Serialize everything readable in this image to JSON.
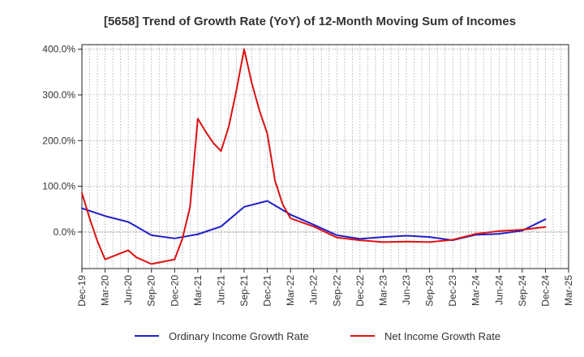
{
  "chart_data": {
    "type": "line",
    "title": "[5658]  Trend of Growth Rate (YoY) of 12-Month Moving Sum of Incomes",
    "xlabel": "",
    "ylabel": "",
    "x_tick_labels": [
      "Dec-19",
      "Mar-20",
      "Jun-20",
      "Sep-20",
      "Dec-20",
      "Mar-21",
      "Jun-21",
      "Sep-21",
      "Dec-21",
      "Mar-22",
      "Jun-22",
      "Sep-22",
      "Dec-22",
      "Mar-23",
      "Jun-23",
      "Sep-23",
      "Dec-23",
      "Mar-24",
      "Jun-24",
      "Sep-24",
      "Dec-24",
      "Mar-25"
    ],
    "y_ticks": [
      0,
      100,
      200,
      300,
      400
    ],
    "y_tick_labels": [
      "0.0%",
      "100.0%",
      "200.0%",
      "300.0%",
      "400.0%"
    ],
    "ylim": [
      -80,
      410
    ],
    "grid": true,
    "legend_position": "bottom",
    "series": [
      {
        "name": "Ordinary Income Growth Rate",
        "color": "#1f1fcc",
        "points": [
          [
            "Dec-19",
            52
          ],
          [
            "Mar-20",
            35
          ],
          [
            "Jun-20",
            22
          ],
          [
            "Sep-20",
            -7
          ],
          [
            "Dec-20",
            -14
          ],
          [
            "Mar-21",
            -5
          ],
          [
            "Jun-21",
            12
          ],
          [
            "Sep-21",
            55
          ],
          [
            "Dec-21",
            68
          ],
          [
            "Mar-22",
            38
          ],
          [
            "Jun-22",
            16
          ],
          [
            "Sep-22",
            -7
          ],
          [
            "Dec-22",
            -15
          ],
          [
            "Mar-23",
            -11
          ],
          [
            "Jun-23",
            -8
          ],
          [
            "Sep-23",
            -11
          ],
          [
            "Dec-23",
            -18
          ],
          [
            "Mar-24",
            -6
          ],
          [
            "Jun-24",
            -4
          ],
          [
            "Sep-24",
            3
          ],
          [
            "Dec-24",
            28
          ]
        ]
      },
      {
        "name": "Net Income Growth Rate",
        "color": "#dd1111",
        "points": [
          [
            "Dec-19",
            85
          ],
          [
            "Jan-20",
            30
          ],
          [
            "Feb-20",
            -20
          ],
          [
            "Mar-20",
            -60
          ],
          [
            "Jun-20",
            -40
          ],
          [
            "Jul-20",
            -55
          ],
          [
            "Sep-20",
            -70
          ],
          [
            "Dec-20",
            -60
          ],
          [
            "Jan-21",
            -15
          ],
          [
            "Feb-21",
            55
          ],
          [
            "Mar-21",
            248
          ],
          [
            "Apr-21",
            220
          ],
          [
            "May-21",
            195
          ],
          [
            "Jun-21",
            177
          ],
          [
            "Jul-21",
            230
          ],
          [
            "Aug-21",
            310
          ],
          [
            "Sep-21",
            400
          ],
          [
            "Oct-21",
            325
          ],
          [
            "Nov-21",
            265
          ],
          [
            "Dec-21",
            215
          ],
          [
            "Jan-22",
            112
          ],
          [
            "Feb-22",
            60
          ],
          [
            "Mar-22",
            30
          ],
          [
            "Jun-22",
            12
          ],
          [
            "Sep-22",
            -12
          ],
          [
            "Dec-22",
            -18
          ],
          [
            "Mar-23",
            -22
          ],
          [
            "Jun-23",
            -21
          ],
          [
            "Sep-23",
            -22
          ],
          [
            "Dec-23",
            -17
          ],
          [
            "Mar-24",
            -4
          ],
          [
            "Jun-24",
            2
          ],
          [
            "Sep-24",
            5
          ],
          [
            "Dec-24",
            11
          ]
        ]
      }
    ]
  }
}
